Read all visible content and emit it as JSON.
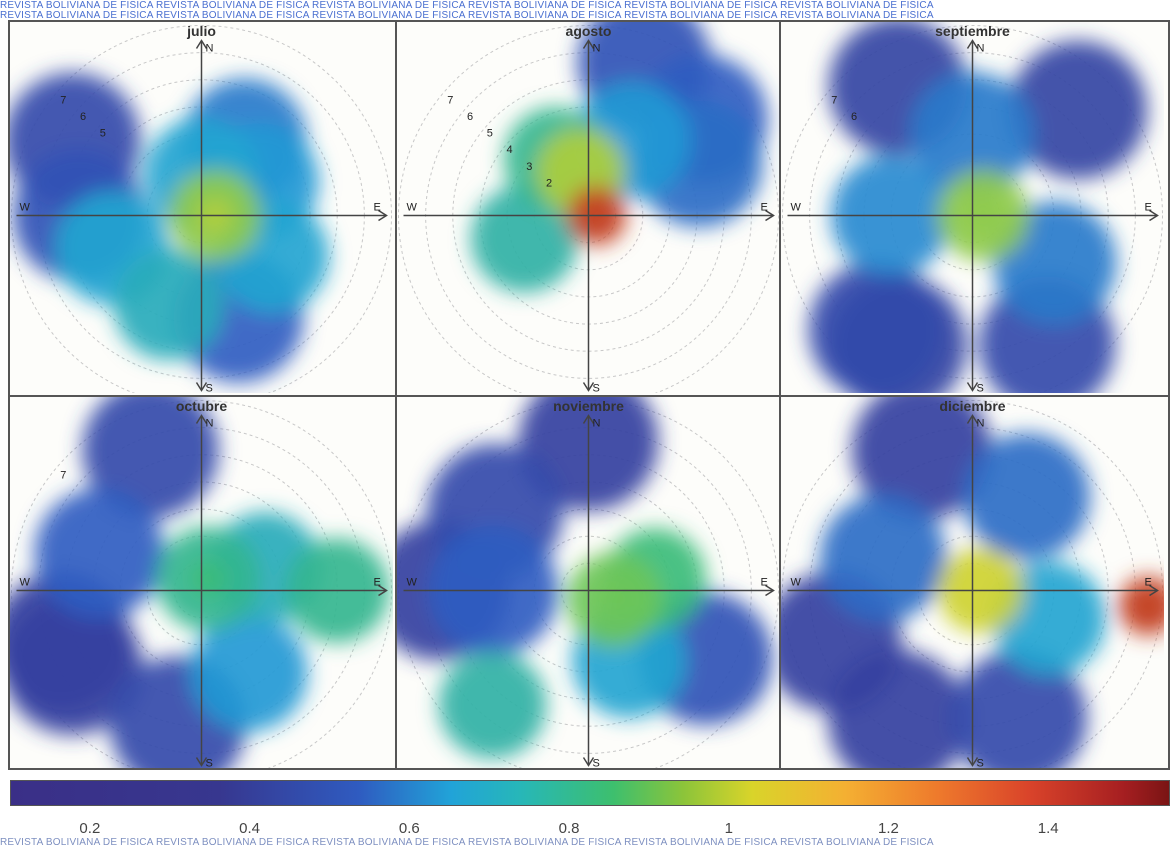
{
  "watermark": {
    "line1": "REVISTA BOLIVIANA DE FISICA  REVISTA BOLIVIANA DE FISICA  REVISTA BOLIVIANA DE FISICA  REVISTA BOLIVIANA DE FISICA  REVISTA BOLIVIANA DE FISICA  REVISTA BOLIVIANA DE FISICA",
    "line2": "REVISTA BOLIVIANA DE FISICA  REVISTA BOLIVIANA DE FISICA  REVISTA BOLIVIANA DE FISICA  REVISTA BOLIVIANA DE FISICA  REVISTA BOLIVIANA DE FISICA  REVISTA BOLIVIANA DE FISICA",
    "bottom": "REVISTA BOLIVIANA DE FISICA  REVISTA BOLIVIANA DE FISICA  REVISTA BOLIVIANA DE FISICA  REVISTA BOLIVIANA DE FISICA  REVISTA BOLIVIANA DE FISICA  REVISTA BOLIVIANA DE FISICA"
  },
  "chart_data": {
    "type": "heatmap",
    "subtype": "polar-rose-heatmap",
    "compass": {
      "n": "N",
      "s": "S",
      "e": "E",
      "w": "W"
    },
    "colorbar": {
      "ticks": [
        "0.2",
        "0.4",
        "0.6",
        "0.8",
        "1",
        "1.2",
        "1.4"
      ],
      "tick_values": [
        0.2,
        0.4,
        0.6,
        0.8,
        1.0,
        1.2,
        1.4
      ],
      "range": [
        0.1,
        1.55
      ],
      "colors": [
        "#3a2f87",
        "#2f5bc0",
        "#21a3d8",
        "#3dbf6e",
        "#d9d42a",
        "#ee7a2c",
        "#a61f21"
      ]
    },
    "panels": [
      {
        "month": "julio",
        "ring_labels": [
          "7",
          "6",
          "5"
        ],
        "hotspot_value": 1.0,
        "blobs": [
          {
            "r": 3.2,
            "theta": 60,
            "v": 0.45
          },
          {
            "r": 2.5,
            "theta": 30,
            "v": 0.55
          },
          {
            "r": 1.5,
            "theta": 90,
            "v": 0.6
          },
          {
            "r": 4,
            "theta": -70,
            "v": 0.35
          },
          {
            "r": 3,
            "theta": -30,
            "v": 0.6
          },
          {
            "r": 3.5,
            "theta": 200,
            "v": 0.6
          },
          {
            "r": 5.5,
            "theta": 150,
            "v": 0.25
          },
          {
            "r": 4.5,
            "theta": 180,
            "v": 0.3
          },
          {
            "r": 0.5,
            "theta": 0,
            "v": 0.95
          },
          {
            "r": 3.5,
            "theta": 250,
            "v": 0.65
          }
        ]
      },
      {
        "month": "agosto",
        "ring_labels": [
          "7",
          "6",
          "5",
          "4",
          "3",
          "2"
        ],
        "hotspot_value": 1.45,
        "blobs": [
          {
            "r": 0.3,
            "theta": 0,
            "v": 1.45
          },
          {
            "r": 1.6,
            "theta": 100,
            "v": 1.0
          },
          {
            "r": 2.4,
            "theta": 120,
            "v": 0.75
          },
          {
            "r": 3.2,
            "theta": 60,
            "v": 0.55
          },
          {
            "r": 2.5,
            "theta": 200,
            "v": 0.7
          },
          {
            "r": 6,
            "theta": 70,
            "v": 0.3
          },
          {
            "r": 5.5,
            "theta": 40,
            "v": 0.35
          },
          {
            "r": 4.5,
            "theta": 25,
            "v": 0.4
          }
        ]
      },
      {
        "month": "septiembre",
        "ring_labels": [
          "7",
          "6"
        ],
        "hotspot_value": 0.95,
        "blobs": [
          {
            "r": 0.4,
            "theta": 0,
            "v": 0.95
          },
          {
            "r": 3,
            "theta": 90,
            "v": 0.45
          },
          {
            "r": 3,
            "theta": 180,
            "v": 0.5
          },
          {
            "r": 3.5,
            "theta": -30,
            "v": 0.45
          },
          {
            "r": 5.5,
            "theta": 120,
            "v": 0.22
          },
          {
            "r": 5.5,
            "theta": 45,
            "v": 0.22
          },
          {
            "r": 5.5,
            "theta": 230,
            "v": 0.25
          },
          {
            "r": 5.5,
            "theta": -60,
            "v": 0.25
          },
          {
            "r": 5.5,
            "theta": -120,
            "v": 0.22
          }
        ]
      },
      {
        "month": "octubre",
        "ring_labels": [
          "7"
        ],
        "hotspot_value": 0.8,
        "blobs": [
          {
            "r": 0.5,
            "theta": 60,
            "v": 0.75
          },
          {
            "r": 2.5,
            "theta": 20,
            "v": 0.65
          },
          {
            "r": 3.5,
            "theta": -60,
            "v": 0.55
          },
          {
            "r": 5,
            "theta": 0,
            "v": 0.75
          },
          {
            "r": 4,
            "theta": 160,
            "v": 0.35
          },
          {
            "r": 5.5,
            "theta": 200,
            "v": 0.2
          },
          {
            "r": 5.5,
            "theta": 110,
            "v": 0.25
          },
          {
            "r": 5,
            "theta": -100,
            "v": 0.25
          },
          {
            "r": 5.5,
            "theta": -150,
            "v": 0.2
          }
        ]
      },
      {
        "month": "noviembre",
        "ring_labels": [],
        "hotspot_value": 0.9,
        "blobs": [
          {
            "r": 1,
            "theta": -20,
            "v": 0.9
          },
          {
            "r": 2.5,
            "theta": 10,
            "v": 0.8
          },
          {
            "r": 3,
            "theta": -60,
            "v": 0.6
          },
          {
            "r": 3.5,
            "theta": 180,
            "v": 0.35
          },
          {
            "r": 5.5,
            "theta": 90,
            "v": 0.2
          },
          {
            "r": 5.5,
            "theta": 180,
            "v": 0.2
          },
          {
            "r": 5.5,
            "theta": -130,
            "v": 0.7
          },
          {
            "r": 5,
            "theta": -30,
            "v": 0.3
          },
          {
            "r": 4.5,
            "theta": 140,
            "v": 0.25
          }
        ]
      },
      {
        "month": "diciembre",
        "ring_labels": [],
        "hotspot_value": 1.45,
        "blobs": [
          {
            "r": 0.3,
            "theta": 0,
            "v": 1.05
          },
          {
            "r": 6.5,
            "theta": -5,
            "v": 1.45
          },
          {
            "r": 3,
            "theta": -20,
            "v": 0.6
          },
          {
            "r": 3.5,
            "theta": 160,
            "v": 0.4
          },
          {
            "r": 5.5,
            "theta": 110,
            "v": 0.2
          },
          {
            "r": 5.5,
            "theta": 200,
            "v": 0.2
          },
          {
            "r": 5,
            "theta": -70,
            "v": 0.25
          },
          {
            "r": 5.5,
            "theta": -120,
            "v": 0.2
          },
          {
            "r": 4,
            "theta": 60,
            "v": 0.4
          }
        ]
      }
    ]
  }
}
